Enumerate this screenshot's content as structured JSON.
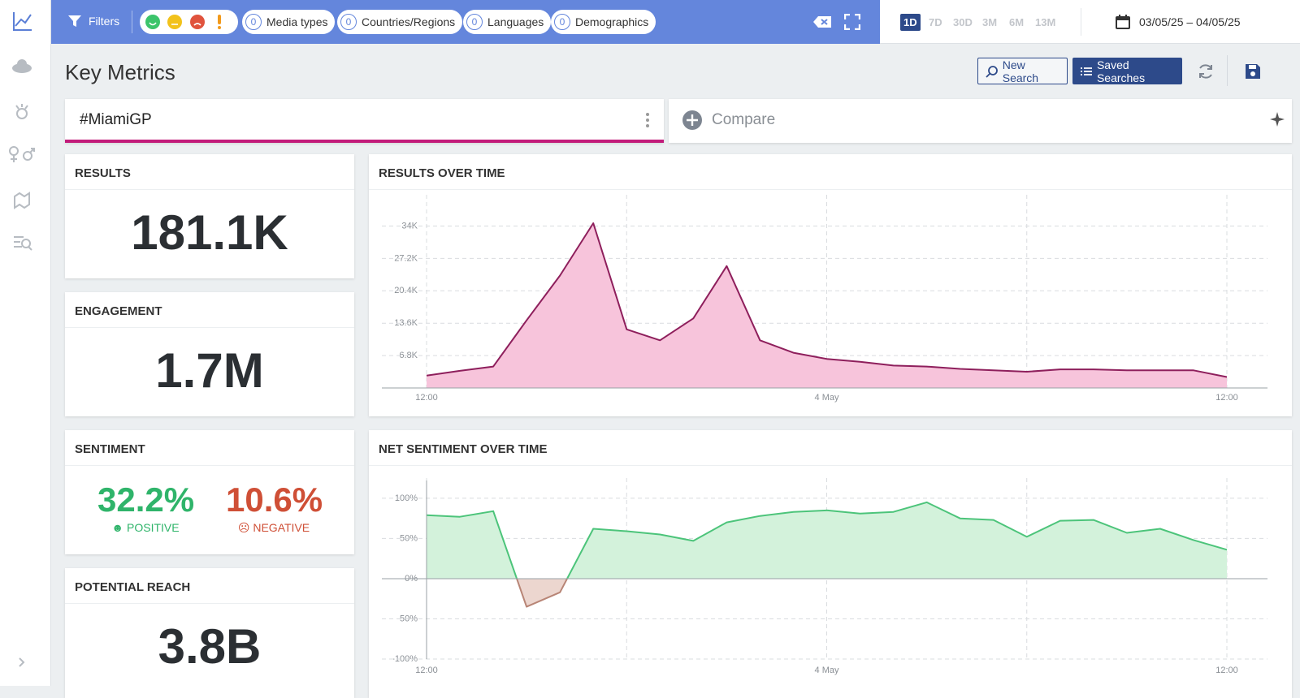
{
  "header": {
    "filters_label": "Filters",
    "filter_chips": [
      {
        "count": 0,
        "label": "Media types"
      },
      {
        "count": 0,
        "label": "Countries/Regions"
      },
      {
        "count": 0,
        "label": "Languages"
      },
      {
        "count": 0,
        "label": "Demographics"
      }
    ],
    "time_ranges": [
      "1D",
      "7D",
      "30D",
      "3M",
      "6M",
      "13M"
    ],
    "active_range": "1D",
    "date_range": "03/05/25 – 04/05/25"
  },
  "page_title": "Key Metrics",
  "buttons": {
    "new_search": "New Search",
    "saved_searches": "Saved Searches"
  },
  "search": {
    "query": "#MiamiGP",
    "compare": "Compare"
  },
  "metrics": {
    "results": {
      "title": "RESULTS",
      "value": "181.1K"
    },
    "engagement": {
      "title": "ENGAGEMENT",
      "value": "1.7M"
    },
    "sentiment": {
      "title": "SENTIMENT",
      "positive": {
        "value": "32.2%",
        "label": "POSITIVE"
      },
      "negative": {
        "value": "10.6%",
        "label": "NEGATIVE"
      }
    },
    "potential_reach": {
      "title": "POTENTIAL REACH",
      "value": "3.8B"
    }
  },
  "chart_data": [
    {
      "type": "area",
      "title": "RESULTS OVER TIME",
      "categories": [
        "12:00",
        null,
        null,
        null,
        null,
        null,
        null,
        null,
        null,
        null,
        null,
        null,
        "4 May",
        null,
        null,
        null,
        null,
        null,
        null,
        null,
        null,
        null,
        null,
        null,
        "12:00"
      ],
      "values": [
        2600,
        3600,
        4500,
        14200,
        23600,
        34600,
        12300,
        10000,
        14600,
        25600,
        10000,
        7400,
        6100,
        5500,
        4700,
        4500,
        4000,
        3700,
        3400,
        3900,
        3900,
        3700,
        3700,
        3700,
        2300
      ],
      "color": "#8e1f5c",
      "fill": "#f7c4db",
      "ylim": [
        0,
        38000
      ],
      "yticks": [
        {
          "value": 6800,
          "label": "6.8K"
        },
        {
          "value": 13600,
          "label": "13.6K"
        },
        {
          "value": 20400,
          "label": "20.4K"
        },
        {
          "value": 27200,
          "label": "27.2K"
        },
        {
          "value": 34000,
          "label": "34K"
        }
      ],
      "grid": true
    },
    {
      "type": "area",
      "title": "NET SENTIMENT OVER TIME",
      "categories": [
        "12:00",
        null,
        null,
        null,
        null,
        null,
        null,
        null,
        null,
        null,
        null,
        null,
        "4 May",
        null,
        null,
        null,
        null,
        null,
        null,
        null,
        null,
        null,
        null,
        null,
        "12:00"
      ],
      "values": [
        79,
        77,
        84,
        -35,
        -17,
        62,
        59,
        55,
        47,
        70,
        78,
        83,
        85,
        81,
        83,
        95,
        75,
        73,
        52,
        72,
        73,
        57,
        62,
        48,
        36
      ],
      "color": "#4cc47a",
      "fill": "#d3f2db",
      "negative_color": "#b88576",
      "negative_fill": "#ecd6cf",
      "ylim": [
        -100,
        110
      ],
      "yticks": [
        {
          "value": -100,
          "label": "-100%"
        },
        {
          "value": -50,
          "label": "-50%"
        },
        {
          "value": 0,
          "label": "0%"
        },
        {
          "value": 50,
          "label": "50%"
        },
        {
          "value": 100,
          "label": "100%"
        }
      ],
      "grid": true
    }
  ]
}
